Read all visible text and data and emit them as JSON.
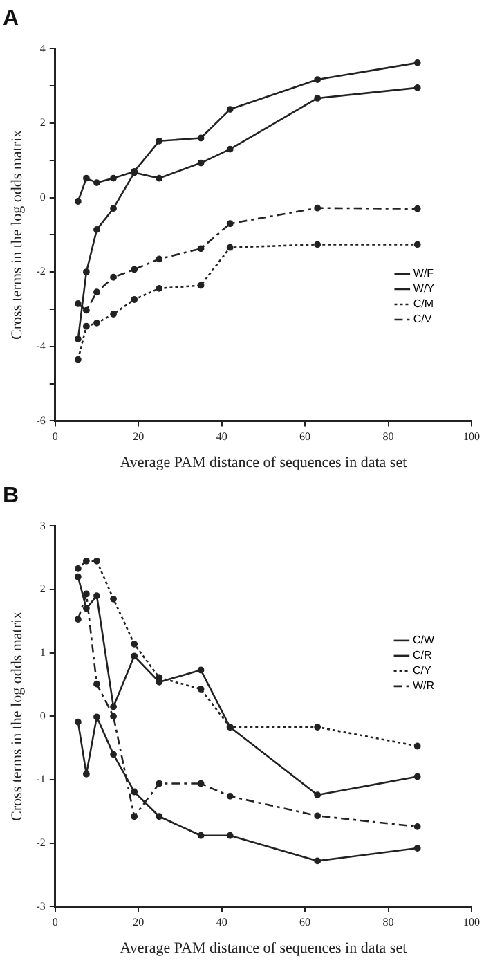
{
  "chart_data": [
    {
      "type": "line",
      "title": "A",
      "xlabel": "Average PAM distance of sequences in data set",
      "ylabel": "Cross terms in the log odds matrix",
      "x": [
        5.5,
        7.5,
        10,
        14,
        19,
        25,
        35,
        42,
        63,
        87
      ],
      "xlim": [
        0,
        100
      ],
      "xticks": [
        0,
        20,
        40,
        60,
        80,
        100
      ],
      "ylim": [
        -6,
        4
      ],
      "yticks": [
        -6,
        {
          "value": -5,
          "label": null
        },
        -4,
        {
          "value": -3,
          "label": null
        },
        -2,
        {
          "value": -1,
          "label": null
        },
        0,
        {
          "value": 1,
          "label": null
        },
        2,
        {
          "value": 3,
          "label": null
        },
        4
      ],
      "grid": false,
      "legend": "bottom right",
      "marker": "circle",
      "series": [
        {
          "name": "W/F",
          "color": "#222222",
          "line_style": "solid",
          "values": [
            -3.8,
            -2.0,
            -0.86,
            -0.29,
            0.67,
            0.52,
            0.93,
            1.3,
            2.67,
            2.95
          ]
        },
        {
          "name": "W/Y",
          "color": "#222222",
          "line_style": "solid",
          "values": [
            -0.1,
            0.52,
            0.4,
            0.52,
            0.7,
            1.52,
            1.6,
            2.37,
            3.17,
            3.62
          ]
        },
        {
          "name": "C/M",
          "color": "#222222",
          "line_style": "dotted",
          "values": [
            -4.35,
            -3.46,
            -3.37,
            -3.13,
            -2.74,
            -2.44,
            -2.36,
            -1.34,
            -1.26,
            -1.26
          ]
        },
        {
          "name": "C/V",
          "color": "#222222",
          "line_style": "dashed",
          "values": [
            -2.85,
            -3.03,
            -2.54,
            -2.14,
            -1.93,
            -1.65,
            -1.37,
            -0.7,
            -0.28,
            -0.3
          ]
        }
      ]
    },
    {
      "type": "line",
      "title": "B",
      "xlabel": "Average PAM distance of sequences in data set",
      "ylabel": "Cross terms in the log odds matrix",
      "x": [
        5.5,
        7.5,
        10,
        14,
        19,
        25,
        35,
        42,
        63,
        87
      ],
      "xlim": [
        0,
        100
      ],
      "xticks": [
        0,
        20,
        40,
        60,
        80,
        100
      ],
      "ylim": [
        -3,
        3
      ],
      "yticks": [
        -3,
        -2,
        -1,
        0,
        1,
        2,
        3
      ],
      "grid": false,
      "legend": "top right",
      "marker": "circle",
      "series": [
        {
          "name": "C/W",
          "color": "#222222",
          "line_style": "solid",
          "values": [
            2.2,
            1.7,
            1.9,
            0.15,
            0.95,
            0.54,
            0.73,
            -0.17,
            -1.24,
            -0.95
          ]
        },
        {
          "name": "C/R",
          "color": "#222222",
          "line_style": "solid",
          "values": [
            -0.09,
            -0.91,
            -0.01,
            -0.6,
            -1.19,
            -1.58,
            -1.88,
            -1.88,
            -2.28,
            -2.08
          ]
        },
        {
          "name": "C/Y",
          "color": "#222222",
          "line_style": "dotted",
          "values": [
            2.33,
            2.45,
            2.45,
            1.85,
            1.14,
            0.61,
            0.43,
            -0.17,
            -0.17,
            -0.47
          ]
        },
        {
          "name": "W/R",
          "color": "#222222",
          "line_style": "dashed",
          "values": [
            1.53,
            1.93,
            0.51,
            0.0,
            -1.58,
            -1.06,
            -1.06,
            -1.26,
            -1.57,
            -1.74
          ]
        }
      ]
    }
  ]
}
